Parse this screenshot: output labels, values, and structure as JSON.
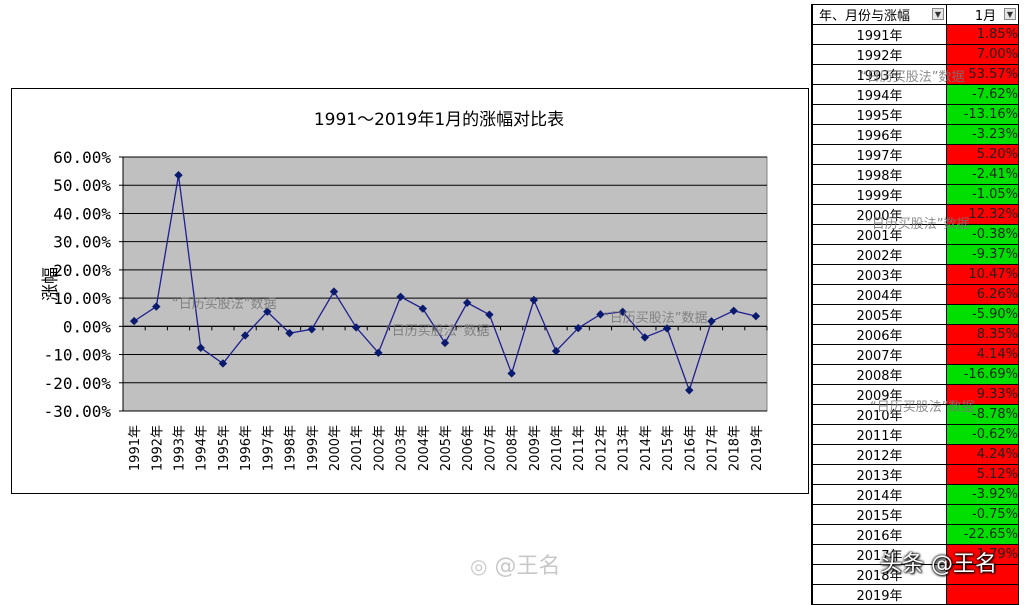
{
  "chart_data": {
    "type": "line",
    "title": "1991～2019年1月的涨幅对比表",
    "ylabel": "涨幅",
    "xlabel": "",
    "ylim": [
      -30,
      60
    ],
    "yticks": [
      "60.00%",
      "50.00%",
      "40.00%",
      "30.00%",
      "20.00%",
      "10.00%",
      "0.00%",
      "-10.00%",
      "-20.00%",
      "-30.00%"
    ],
    "grid": true,
    "legend": "none",
    "categories": [
      "1991年",
      "1992年",
      "1993年",
      "1994年",
      "1995年",
      "1996年",
      "1997年",
      "1998年",
      "1999年",
      "2000年",
      "2001年",
      "2002年",
      "2003年",
      "2004年",
      "2005年",
      "2006年",
      "2007年",
      "2008年",
      "2009年",
      "2010年",
      "2011年",
      "2012年",
      "2013年",
      "2014年",
      "2015年",
      "2016年",
      "2017年",
      "2018年",
      "2019年"
    ],
    "series": [
      {
        "values": [
          1.85,
          7.0,
          53.57,
          -7.62,
          -13.16,
          -3.23,
          5.2,
          -2.41,
          -1.05,
          12.32,
          -0.38,
          -9.37,
          10.47,
          6.26,
          -5.9,
          8.35,
          4.14,
          -16.69,
          9.33,
          -8.78,
          -0.62,
          4.24,
          5.12,
          -3.92,
          -0.75,
          -22.65,
          1.79,
          5.5,
          3.6
        ]
      }
    ],
    "colors": {
      "line": "#1f1f8f",
      "marker": "#0a1a6e",
      "plot_bg": "#c0c0c0",
      "grid": "#000000"
    }
  },
  "table": {
    "header_year": "年、月份与涨幅",
    "header_month": "1月",
    "rows": [
      {
        "year": "1991年",
        "value": "1.85%",
        "dir": "up"
      },
      {
        "year": "1992年",
        "value": "7.00%",
        "dir": "up"
      },
      {
        "year": "1993年",
        "value": "53.57%",
        "dir": "up"
      },
      {
        "year": "1994年",
        "value": "-7.62%",
        "dir": "down"
      },
      {
        "year": "1995年",
        "value": "-13.16%",
        "dir": "down"
      },
      {
        "year": "1996年",
        "value": "-3.23%",
        "dir": "down"
      },
      {
        "year": "1997年",
        "value": "5.20%",
        "dir": "up"
      },
      {
        "year": "1998年",
        "value": "-2.41%",
        "dir": "down"
      },
      {
        "year": "1999年",
        "value": "-1.05%",
        "dir": "down"
      },
      {
        "year": "2000年",
        "value": "12.32%",
        "dir": "up"
      },
      {
        "year": "2001年",
        "value": "-0.38%",
        "dir": "down"
      },
      {
        "year": "2002年",
        "value": "-9.37%",
        "dir": "down"
      },
      {
        "year": "2003年",
        "value": "10.47%",
        "dir": "up"
      },
      {
        "year": "2004年",
        "value": "6.26%",
        "dir": "up"
      },
      {
        "year": "2005年",
        "value": "-5.90%",
        "dir": "down"
      },
      {
        "year": "2006年",
        "value": "8.35%",
        "dir": "up"
      },
      {
        "year": "2007年",
        "value": "4.14%",
        "dir": "up"
      },
      {
        "year": "2008年",
        "value": "-16.69%",
        "dir": "down"
      },
      {
        "year": "2009年",
        "value": "9.33%",
        "dir": "up"
      },
      {
        "year": "2010年",
        "value": "-8.78%",
        "dir": "down"
      },
      {
        "year": "2011年",
        "value": "-0.62%",
        "dir": "down"
      },
      {
        "year": "2012年",
        "value": "4.24%",
        "dir": "up"
      },
      {
        "year": "2013年",
        "value": "5.12%",
        "dir": "up"
      },
      {
        "year": "2014年",
        "value": "-3.92%",
        "dir": "down"
      },
      {
        "year": "2015年",
        "value": "-0.75%",
        "dir": "down"
      },
      {
        "year": "2016年",
        "value": "-22.65%",
        "dir": "down"
      },
      {
        "year": "2017年",
        "value": "1.79%",
        "dir": "up"
      },
      {
        "year": "2018年",
        "value": "",
        "dir": "up"
      },
      {
        "year": "2019年",
        "value": "",
        "dir": "up"
      }
    ]
  },
  "watermarks": {
    "method": "“日历买股法”数据",
    "weibo": "@王名",
    "toutiao": "头条 @王名"
  },
  "icons": {
    "dropdown": "dropdown-arrow-icon",
    "weibo": "weibo-logo-icon"
  }
}
